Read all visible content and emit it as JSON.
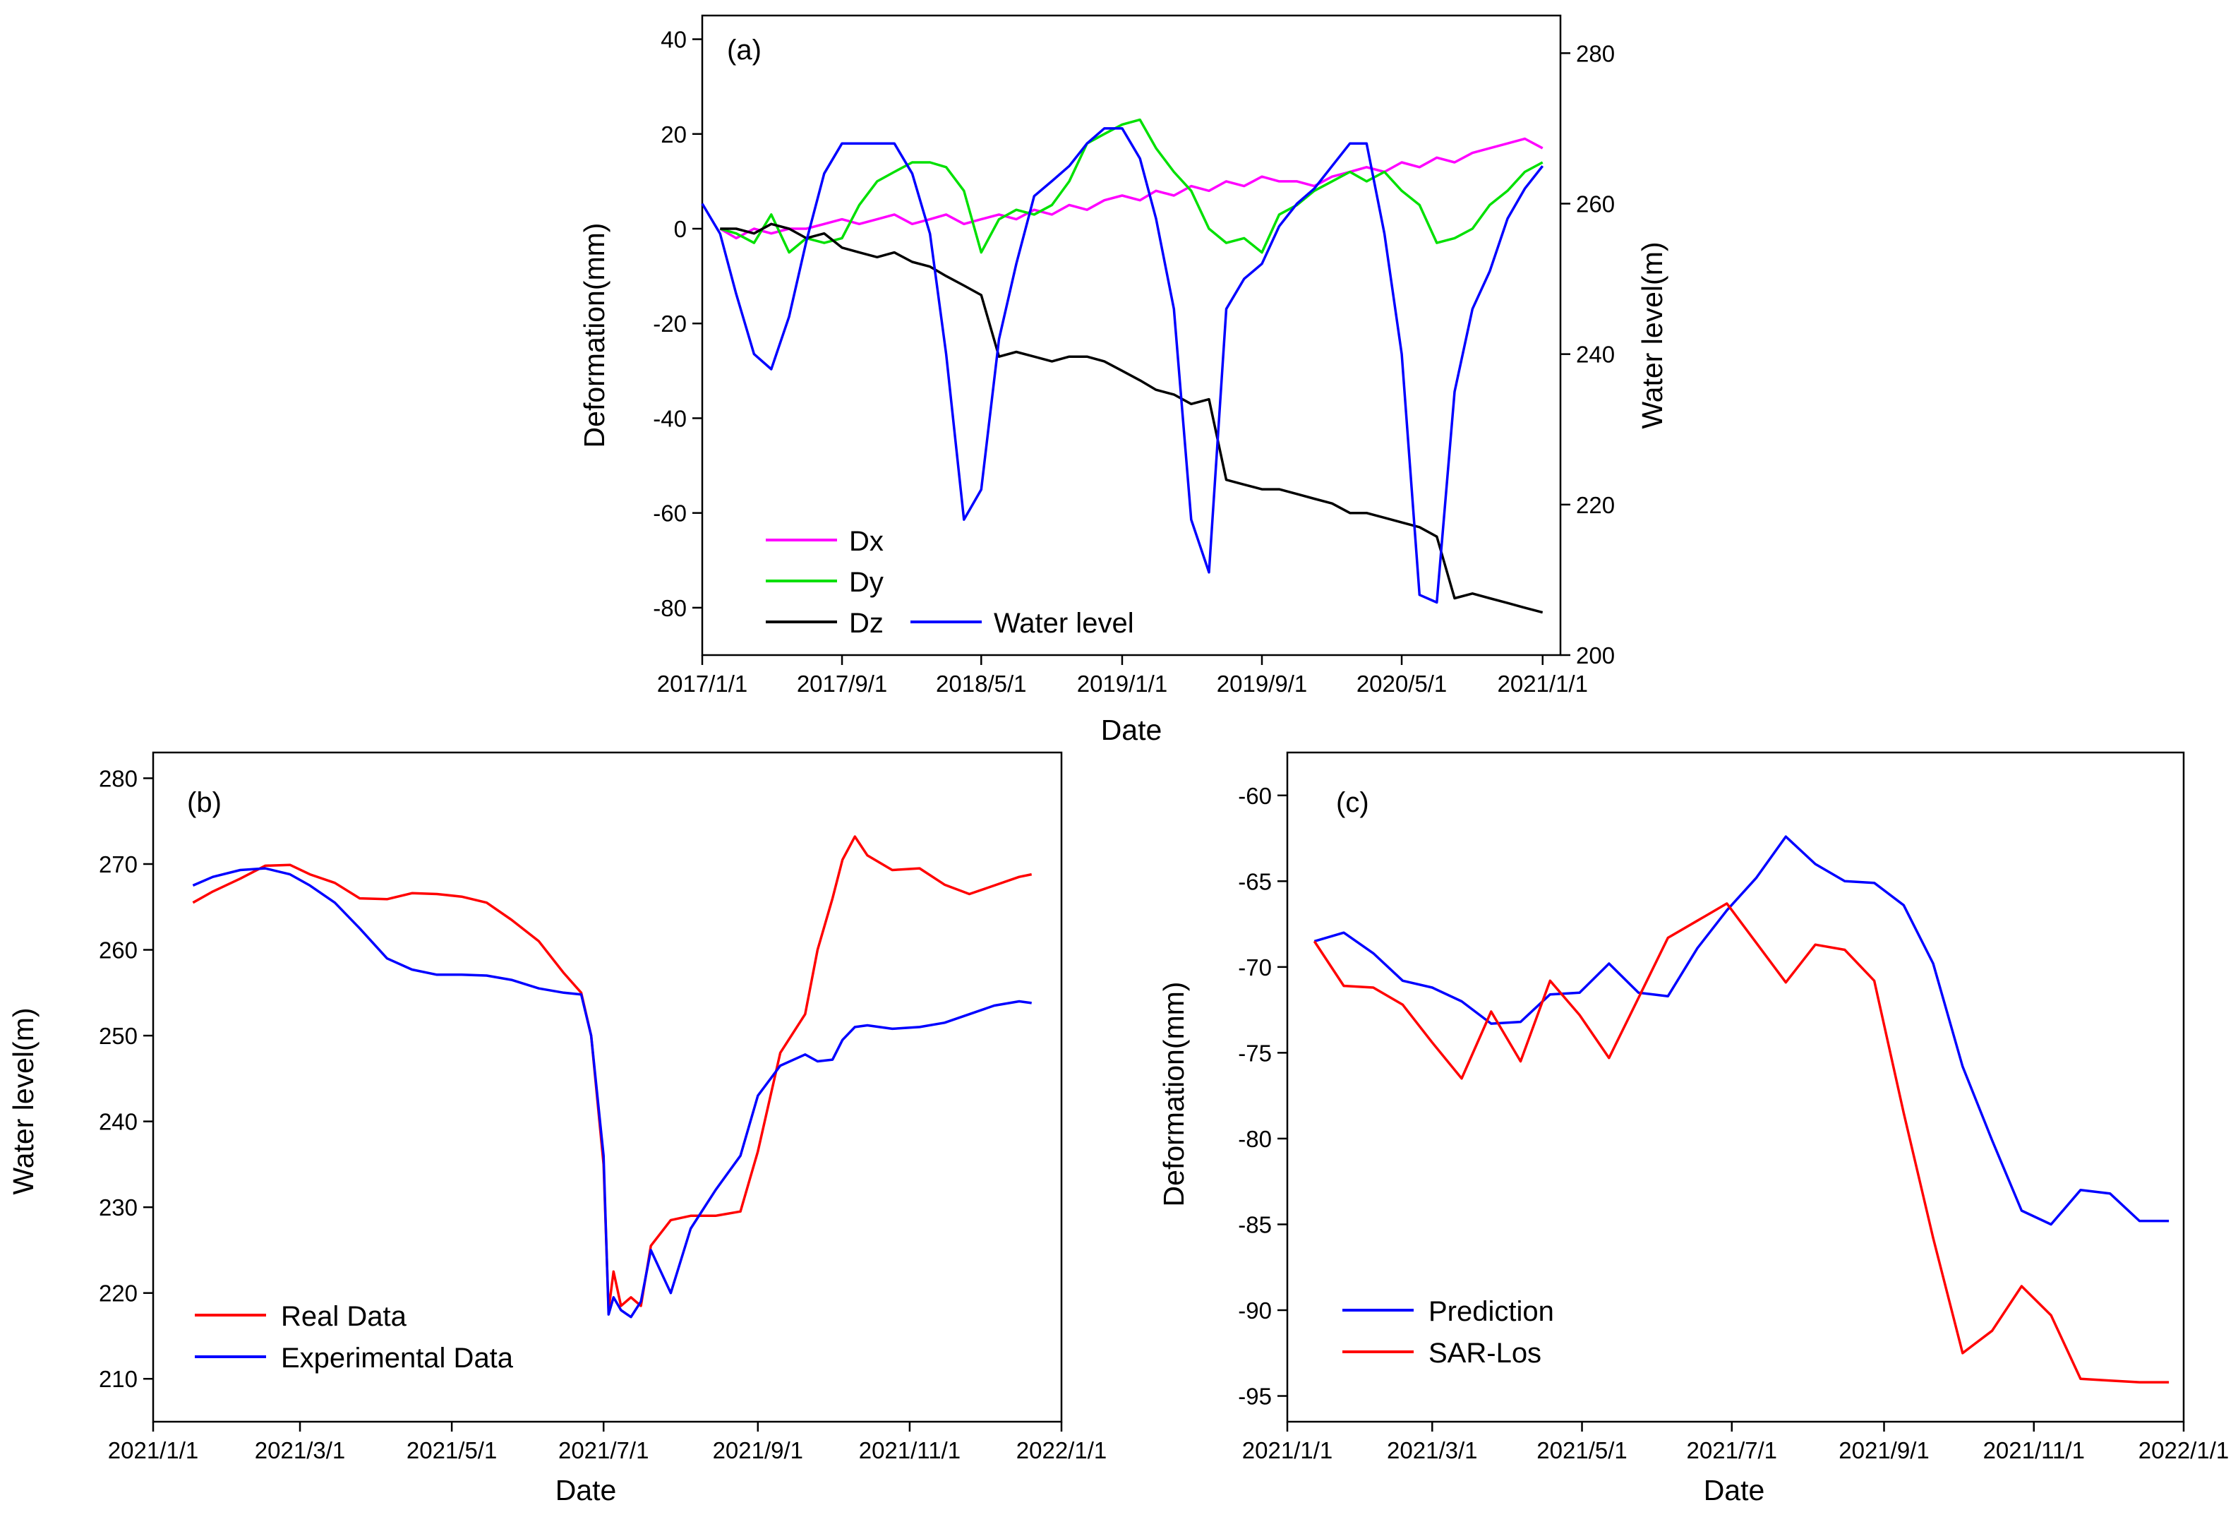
{
  "chart_data": [
    {
      "id": "a",
      "type": "line",
      "panel_label": "(a)",
      "xlabel": "Date",
      "ylabel": "Deformation(mm)",
      "ylabel_right": "Water level(m)",
      "x_domain": [
        "2017/1/1",
        "2021/2/1"
      ],
      "ylim": [
        -90,
        45
      ],
      "ylim_right": [
        200,
        285
      ],
      "x_ticks": [
        "2017/1/1",
        "2017/9/1",
        "2018/5/1",
        "2019/1/1",
        "2019/9/1",
        "2020/5/1",
        "2021/1/1"
      ],
      "y_ticks": [
        40,
        20,
        0,
        -20,
        -40,
        -60,
        -80
      ],
      "y_ticks_right": [
        280,
        260,
        240,
        220,
        200
      ],
      "series": [
        {
          "name": "Dx",
          "axis": "left",
          "color": "#ff00ff",
          "x": [
            "2017/2/1",
            "2017/3/1",
            "2017/4/1",
            "2017/5/1",
            "2017/6/1",
            "2017/7/1",
            "2017/8/1",
            "2017/9/1",
            "2017/10/1",
            "2017/11/1",
            "2017/12/1",
            "2018/1/1",
            "2018/2/1",
            "2018/3/1",
            "2018/4/1",
            "2018/5/1",
            "2018/6/1",
            "2018/7/1",
            "2018/8/1",
            "2018/9/1",
            "2018/10/1",
            "2018/11/1",
            "2018/12/1",
            "2019/1/1",
            "2019/2/1",
            "2019/3/1",
            "2019/4/1",
            "2019/5/1",
            "2019/6/1",
            "2019/7/1",
            "2019/8/1",
            "2019/9/1",
            "2019/10/1",
            "2019/11/1",
            "2019/12/1",
            "2020/1/1",
            "2020/2/1",
            "2020/3/1",
            "2020/4/1",
            "2020/5/1",
            "2020/6/1",
            "2020/7/1",
            "2020/8/1",
            "2020/9/1",
            "2020/10/1",
            "2020/11/1",
            "2020/12/1",
            "2021/1/1"
          ],
          "values": [
            0,
            -2,
            0,
            -1,
            0,
            0,
            1,
            2,
            1,
            2,
            3,
            1,
            2,
            3,
            1,
            2,
            3,
            2,
            4,
            3,
            5,
            4,
            6,
            7,
            6,
            8,
            7,
            9,
            8,
            10,
            9,
            11,
            10,
            10,
            9,
            11,
            12,
            13,
            12,
            14,
            13,
            15,
            14,
            16,
            17,
            18,
            19,
            17
          ]
        },
        {
          "name": "Dy",
          "axis": "left",
          "color": "#00e000",
          "x": [
            "2017/2/1",
            "2017/3/1",
            "2017/4/1",
            "2017/5/1",
            "2017/6/1",
            "2017/7/1",
            "2017/8/1",
            "2017/9/1",
            "2017/10/1",
            "2017/11/1",
            "2017/12/1",
            "2018/1/1",
            "2018/2/1",
            "2018/3/1",
            "2018/4/1",
            "2018/5/1",
            "2018/6/1",
            "2018/7/1",
            "2018/8/1",
            "2018/9/1",
            "2018/10/1",
            "2018/11/1",
            "2018/12/1",
            "2019/1/1",
            "2019/2/1",
            "2019/3/1",
            "2019/4/1",
            "2019/5/1",
            "2019/6/1",
            "2019/7/1",
            "2019/8/1",
            "2019/9/1",
            "2019/10/1",
            "2019/11/1",
            "2019/12/1",
            "2020/1/1",
            "2020/2/1",
            "2020/3/1",
            "2020/4/1",
            "2020/5/1",
            "2020/6/1",
            "2020/7/1",
            "2020/8/1",
            "2020/9/1",
            "2020/10/1",
            "2020/11/1",
            "2020/12/1",
            "2021/1/1"
          ],
          "values": [
            0,
            -1,
            -3,
            3,
            -5,
            -2,
            -3,
            -2,
            5,
            10,
            12,
            14,
            14,
            13,
            8,
            -5,
            2,
            4,
            3,
            5,
            10,
            18,
            20,
            22,
            23,
            17,
            12,
            8,
            0,
            -3,
            -2,
            -5,
            3,
            5,
            8,
            10,
            12,
            10,
            12,
            8,
            5,
            -3,
            -2,
            0,
            5,
            8,
            12,
            14
          ]
        },
        {
          "name": "Dz",
          "axis": "left",
          "color": "#000000",
          "x": [
            "2017/2/1",
            "2017/3/1",
            "2017/4/1",
            "2017/5/1",
            "2017/6/1",
            "2017/7/1",
            "2017/8/1",
            "2017/9/1",
            "2017/10/1",
            "2017/11/1",
            "2017/12/1",
            "2018/1/1",
            "2018/2/1",
            "2018/3/1",
            "2018/4/1",
            "2018/5/1",
            "2018/6/1",
            "2018/7/1",
            "2018/8/1",
            "2018/9/1",
            "2018/10/1",
            "2018/11/1",
            "2018/12/1",
            "2019/1/1",
            "2019/2/1",
            "2019/3/1",
            "2019/4/1",
            "2019/5/1",
            "2019/6/1",
            "2019/7/1",
            "2019/8/1",
            "2019/9/1",
            "2019/10/1",
            "2019/11/1",
            "2019/12/1",
            "2020/1/1",
            "2020/2/1",
            "2020/3/1",
            "2020/4/1",
            "2020/5/1",
            "2020/6/1",
            "2020/7/1",
            "2020/8/1",
            "2020/9/1",
            "2020/10/1",
            "2020/11/1",
            "2020/12/1",
            "2021/1/1"
          ],
          "values": [
            0,
            0,
            -1,
            1,
            0,
            -2,
            -1,
            -4,
            -5,
            -6,
            -5,
            -7,
            -8,
            -10,
            -12,
            -14,
            -27,
            -26,
            -27,
            -28,
            -27,
            -27,
            -28,
            -30,
            -32,
            -34,
            -35,
            -37,
            -36,
            -53,
            -54,
            -55,
            -55,
            -56,
            -57,
            -58,
            -60,
            -60,
            -61,
            -62,
            -63,
            -65,
            -78,
            -77,
            -78,
            -79,
            -80,
            -81
          ]
        },
        {
          "name": "Water level",
          "axis": "right",
          "color": "#0000ff",
          "x": [
            "2017/1/1",
            "2017/2/1",
            "2017/3/1",
            "2017/4/1",
            "2017/5/1",
            "2017/6/1",
            "2017/7/1",
            "2017/8/1",
            "2017/9/1",
            "2017/10/1",
            "2017/11/1",
            "2017/12/1",
            "2018/1/1",
            "2018/2/1",
            "2018/3/1",
            "2018/4/1",
            "2018/5/1",
            "2018/6/1",
            "2018/7/1",
            "2018/8/1",
            "2018/9/1",
            "2018/10/1",
            "2018/11/1",
            "2018/12/1",
            "2019/1/1",
            "2019/2/1",
            "2019/3/1",
            "2019/4/1",
            "2019/5/1",
            "2019/6/1",
            "2019/7/1",
            "2019/8/1",
            "2019/9/1",
            "2019/10/1",
            "2019/11/1",
            "2019/12/1",
            "2020/1/1",
            "2020/2/1",
            "2020/3/1",
            "2020/4/1",
            "2020/5/1",
            "2020/6/1",
            "2020/7/1",
            "2020/8/1",
            "2020/9/1",
            "2020/10/1",
            "2020/11/1",
            "2020/12/1",
            "2021/1/1"
          ],
          "values": [
            260,
            256,
            248,
            240,
            238,
            245,
            255,
            264,
            268,
            268,
            268,
            268,
            264,
            256,
            240,
            218,
            222,
            242,
            252,
            261,
            263,
            265,
            268,
            270,
            270,
            266,
            258,
            246,
            218,
            211,
            246,
            250,
            252,
            257,
            260,
            262,
            265,
            268,
            268,
            256,
            240,
            208,
            207,
            235,
            246,
            251,
            258,
            262,
            265
          ]
        }
      ],
      "legend": [
        "Dx",
        "Dy",
        "Dz",
        "Water level"
      ]
    },
    {
      "id": "b",
      "type": "line",
      "panel_label": "(b)",
      "xlabel": "Date",
      "ylabel": "Water level(m)",
      "x_domain": [
        "2021/1/1",
        "2022/1/1"
      ],
      "ylim": [
        205,
        283
      ],
      "x_ticks": [
        "2021/1/1",
        "2021/3/1",
        "2021/5/1",
        "2021/7/1",
        "2021/9/1",
        "2021/11/1",
        "2022/1/1"
      ],
      "y_ticks": [
        280,
        270,
        260,
        250,
        240,
        230,
        220,
        210
      ],
      "series": [
        {
          "name": "Real Data",
          "color": "#ff0000",
          "x": [
            "2021/1/17",
            "2021/1/25",
            "2021/2/5",
            "2021/2/15",
            "2021/2/25",
            "2021/3/5",
            "2021/3/15",
            "2021/3/25",
            "2021/4/5",
            "2021/4/15",
            "2021/4/25",
            "2021/5/5",
            "2021/5/15",
            "2021/5/25",
            "2021/6/5",
            "2021/6/15",
            "2021/6/22",
            "2021/6/26",
            "2021/7/1",
            "2021/7/3",
            "2021/7/5",
            "2021/7/8",
            "2021/7/12",
            "2021/7/16",
            "2021/7/20",
            "2021/7/28",
            "2021/8/5",
            "2021/8/15",
            "2021/8/25",
            "2021/9/1",
            "2021/9/10",
            "2021/9/20",
            "2021/9/25",
            "2021/10/1",
            "2021/10/5",
            "2021/10/10",
            "2021/10/15",
            "2021/10/25",
            "2021/11/5",
            "2021/11/15",
            "2021/11/25",
            "2021/12/5",
            "2021/12/15",
            "2021/12/20"
          ],
          "values": [
            265.5,
            266.8,
            268.3,
            269.8,
            269.9,
            268.8,
            267.8,
            266.0,
            265.9,
            266.6,
            266.5,
            266.2,
            265.5,
            263.5,
            261.0,
            257.3,
            255.0,
            250.0,
            235.0,
            218.0,
            222.5,
            218.5,
            219.5,
            218.5,
            225.5,
            228.5,
            229.0,
            229.0,
            229.5,
            236.5,
            248.0,
            252.5,
            260.0,
            266.0,
            270.5,
            273.2,
            271.0,
            269.3,
            269.5,
            267.6,
            266.5,
            267.5,
            268.5,
            268.8
          ]
        },
        {
          "name": "Experimental Data",
          "color": "#0000ff",
          "x": [
            "2021/1/17",
            "2021/1/25",
            "2021/2/5",
            "2021/2/15",
            "2021/2/25",
            "2021/3/5",
            "2021/3/15",
            "2021/3/25",
            "2021/4/5",
            "2021/4/15",
            "2021/4/25",
            "2021/5/5",
            "2021/5/15",
            "2021/5/25",
            "2021/6/5",
            "2021/6/15",
            "2021/6/22",
            "2021/6/26",
            "2021/7/1",
            "2021/7/3",
            "2021/7/5",
            "2021/7/8",
            "2021/7/12",
            "2021/7/16",
            "2021/7/20",
            "2021/7/28",
            "2021/8/5",
            "2021/8/15",
            "2021/8/25",
            "2021/9/1",
            "2021/9/10",
            "2021/9/20",
            "2021/9/25",
            "2021/10/1",
            "2021/10/5",
            "2021/10/10",
            "2021/10/15",
            "2021/10/25",
            "2021/11/5",
            "2021/11/15",
            "2021/11/25",
            "2021/12/5",
            "2021/12/15",
            "2021/12/20"
          ],
          "values": [
            267.5,
            268.5,
            269.3,
            269.5,
            268.8,
            267.5,
            265.5,
            262.5,
            259.0,
            257.7,
            257.1,
            257.1,
            257.0,
            256.5,
            255.5,
            255.0,
            254.8,
            250.0,
            236.0,
            217.5,
            219.5,
            218.0,
            217.2,
            219.0,
            225.0,
            220.0,
            227.5,
            232.0,
            236.0,
            243.0,
            246.5,
            247.8,
            247.0,
            247.2,
            249.5,
            251.0,
            251.2,
            250.8,
            251.0,
            251.5,
            252.5,
            253.5,
            254.0,
            253.8
          ]
        }
      ],
      "legend": [
        "Real Data",
        "Experimental Data"
      ]
    },
    {
      "id": "c",
      "type": "line",
      "panel_label": "(c)",
      "xlabel": "Date",
      "ylabel": "Deformation(mm)",
      "x_domain": [
        "2021/1/1",
        "2022/1/1"
      ],
      "ylim": [
        -96.5,
        -57.5
      ],
      "x_ticks": [
        "2021/1/1",
        "2021/3/1",
        "2021/5/1",
        "2021/7/1",
        "2021/9/1",
        "2021/11/1",
        "2022/1/1"
      ],
      "y_ticks": [
        -60,
        -65,
        -70,
        -75,
        -80,
        -85,
        -90,
        -95
      ],
      "series": [
        {
          "name": "Prediction",
          "color": "#0000ff",
          "x": [
            "2021/1/12",
            "2021/1/24",
            "2021/2/5",
            "2021/2/17",
            "2021/3/1",
            "2021/3/13",
            "2021/3/25",
            "2021/4/6",
            "2021/4/18",
            "2021/4/30",
            "2021/5/12",
            "2021/5/24",
            "2021/6/5",
            "2021/6/17",
            "2021/6/29",
            "2021/7/11",
            "2021/7/23",
            "2021/8/4",
            "2021/8/16",
            "2021/8/28",
            "2021/9/9",
            "2021/9/21",
            "2021/10/3",
            "2021/10/15",
            "2021/10/27",
            "2021/11/8",
            "2021/11/20",
            "2021/12/2",
            "2021/12/14",
            "2021/12/26"
          ],
          "values": [
            -68.5,
            -68.0,
            -69.2,
            -70.8,
            -71.2,
            -72.0,
            -73.3,
            -73.2,
            -71.6,
            -71.5,
            -69.8,
            -71.5,
            -71.7,
            -68.9,
            -66.7,
            -64.8,
            -62.4,
            -64.0,
            -65.0,
            -65.1,
            -66.4,
            -69.8,
            -75.8,
            -80.1,
            -84.2,
            -85.0,
            -83.0,
            -83.2,
            -84.8,
            -84.8
          ]
        },
        {
          "name": "SAR-Los",
          "color": "#ff0000",
          "x": [
            "2021/1/12",
            "2021/1/24",
            "2021/2/5",
            "2021/2/17",
            "2021/3/1",
            "2021/3/13",
            "2021/3/25",
            "2021/4/6",
            "2021/4/18",
            "2021/4/30",
            "2021/5/12",
            "2021/5/24",
            "2021/6/5",
            "2021/6/17",
            "2021/6/29",
            "2021/7/11",
            "2021/7/23",
            "2021/8/4",
            "2021/8/16",
            "2021/8/28",
            "2021/9/9",
            "2021/9/21",
            "2021/10/3",
            "2021/10/15",
            "2021/10/27",
            "2021/11/8",
            "2021/11/20",
            "2021/12/2",
            "2021/12/14",
            "2021/12/26"
          ],
          "values": [
            -68.5,
            -71.1,
            -71.2,
            -72.2,
            -74.4,
            -76.5,
            -72.6,
            -75.5,
            -70.8,
            -72.8,
            -75.3,
            -71.8,
            -68.3,
            -67.3,
            -66.3,
            -68.6,
            -70.9,
            -68.7,
            -69.0,
            -70.8,
            -78.5,
            -85.8,
            -92.5,
            -91.2,
            -88.6,
            -90.3,
            -94.0,
            -94.1,
            -94.2,
            -94.2
          ]
        }
      ],
      "legend": [
        "Prediction",
        "SAR-Los"
      ]
    }
  ]
}
